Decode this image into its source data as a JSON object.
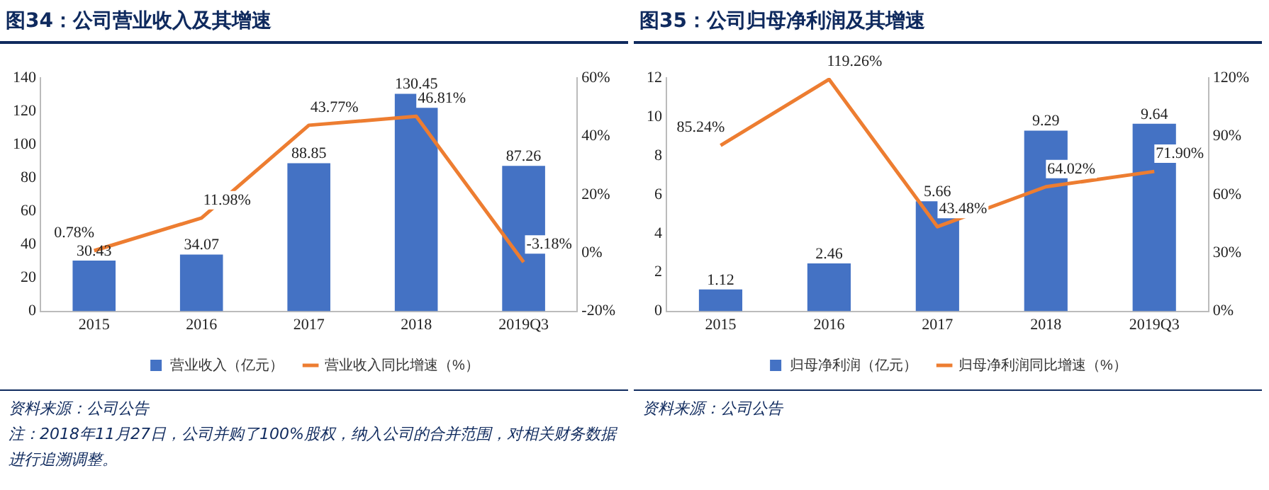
{
  "chart_data": [
    {
      "type": "bar",
      "title": "图34：公司营业收入及其增速",
      "categories": [
        "2015",
        "2016",
        "2017",
        "2018",
        "2019Q3"
      ],
      "series": [
        {
          "name": "营业收入（亿元）",
          "color": "#4472c4",
          "values": [
            30.43,
            34.07,
            88.85,
            130.45,
            87.26
          ],
          "value_labels": [
            "30.43",
            "34.07",
            "88.85",
            "130.45",
            "87.26"
          ]
        },
        {
          "name": "营业收入同比增速（%）",
          "type": "line",
          "axis": "y2",
          "color": "#ed7d31",
          "values": [
            0.78,
            11.98,
            43.77,
            46.81,
            -3.18
          ],
          "value_labels": [
            "0.78%",
            "11.98%",
            "43.77%",
            "46.81%",
            "-3.18%"
          ]
        }
      ],
      "ylim": [
        0,
        140
      ],
      "yticks": [
        0,
        20,
        40,
        60,
        80,
        100,
        120,
        140
      ],
      "y2lim": [
        -20,
        60
      ],
      "y2ticks": [
        {
          "value": -20,
          "label": "-20%"
        },
        {
          "value": 0,
          "label": "0%"
        },
        {
          "value": 20,
          "label": "20%"
        },
        {
          "value": 40,
          "label": "40%"
        },
        {
          "value": 60,
          "label": "60%"
        }
      ],
      "grid": false,
      "legend": "bottom",
      "marker": "none",
      "annotations": [
        "资料来源：公司公告",
        "注：2018年11月27日，公司并购了100%股权，纳入公司的合并范围，对相关财务数据进行追溯调整。"
      ]
    },
    {
      "type": "bar",
      "title": "图35：公司归母净利润及其增速",
      "categories": [
        "2015",
        "2016",
        "2017",
        "2018",
        "2019Q3"
      ],
      "series": [
        {
          "name": "归母净利润（亿元）",
          "color": "#4472c4",
          "values": [
            1.12,
            2.46,
            5.66,
            9.29,
            9.64
          ],
          "value_labels": [
            "1.12",
            "2.46",
            "5.66",
            "9.29",
            "9.64"
          ]
        },
        {
          "name": "归母净利润同比增速（%）",
          "type": "line",
          "axis": "y2",
          "color": "#ed7d31",
          "values": [
            85.24,
            119.26,
            43.48,
            64.02,
            71.9
          ],
          "value_labels": [
            "85.24%",
            "119.26%",
            "43.48%",
            "64.02%",
            "71.90%"
          ]
        }
      ],
      "ylim": [
        0,
        12
      ],
      "yticks": [
        0,
        2,
        4,
        6,
        8,
        10,
        12
      ],
      "y2lim": [
        0,
        120
      ],
      "y2ticks": [
        {
          "value": 0,
          "label": "0%"
        },
        {
          "value": 30,
          "label": "30%"
        },
        {
          "value": 60,
          "label": "60%"
        },
        {
          "value": 90,
          "label": "90%"
        },
        {
          "value": 120,
          "label": "120%"
        }
      ],
      "grid": false,
      "legend": "bottom",
      "marker": "none",
      "annotations": [
        "资料来源：公司公告"
      ]
    }
  ]
}
